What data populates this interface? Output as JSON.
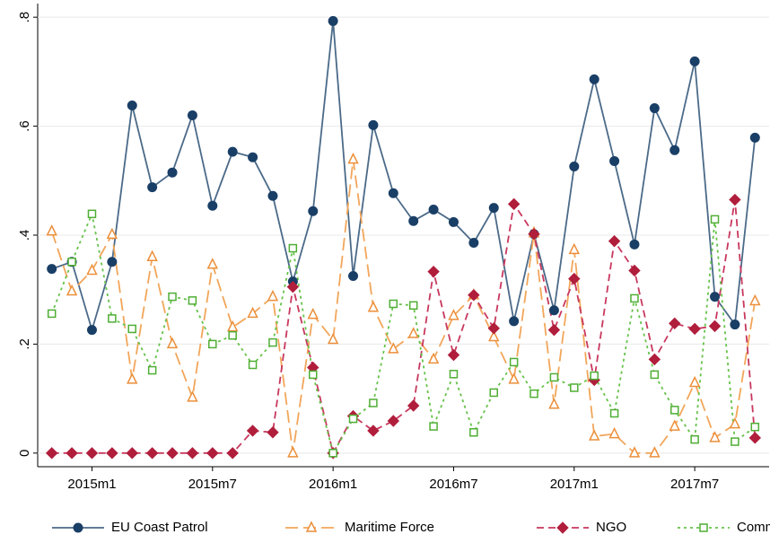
{
  "chart_data": {
    "type": "line",
    "categories": [
      null,
      null,
      "2015m1",
      null,
      null,
      null,
      null,
      null,
      "2015m7",
      null,
      null,
      null,
      null,
      null,
      "2016m1",
      null,
      null,
      null,
      null,
      null,
      "2016m7",
      null,
      null,
      null,
      null,
      null,
      "2017m1",
      null,
      null,
      null,
      null,
      null,
      "2017m7",
      null,
      null,
      null
    ],
    "ylim": [
      -0.025,
      0.825
    ],
    "yticks": [
      0,
      {
        "value": 0.2,
        "label": ".2"
      },
      {
        "value": 0.4,
        "label": ".4"
      },
      {
        "value": 0.6,
        "label": ".6"
      },
      {
        "value": 0.8,
        "label": ".8"
      }
    ],
    "grid": true,
    "legend": "bottom",
    "series": [
      {
        "name": "EU Coast Patrol",
        "color": "#4b6a88",
        "marker": "circle",
        "marker_color": "#1a3f66",
        "dash": "solid",
        "values": [
          0.338,
          0.351,
          0.226,
          0.351,
          0.638,
          0.488,
          0.515,
          0.62,
          0.454,
          0.553,
          0.543,
          0.472,
          0.315,
          0.444,
          0.793,
          0.325,
          0.602,
          0.477,
          0.426,
          0.447,
          0.424,
          0.386,
          0.45,
          0.242,
          0.402,
          0.262,
          0.526,
          0.686,
          0.536,
          0.383,
          0.633,
          0.556,
          0.719,
          0.287,
          0.236,
          0.579
        ]
      },
      {
        "name": "Maritime Force",
        "color": "#f2a65a",
        "marker": "triangle",
        "marker_color": "#ec8f3a",
        "dash": "long",
        "values": [
          0.407,
          0.297,
          0.335,
          0.401,
          0.135,
          0.36,
          0.2,
          0.102,
          0.346,
          0.231,
          0.256,
          0.287,
          0,
          0.254,
          0.208,
          0.539,
          0.267,
          0.191,
          0.219,
          0.172,
          0.252,
          0.29,
          0.213,
          0.135,
          0.404,
          0.089,
          0.373,
          0.031,
          0.035,
          0,
          0,
          0.049,
          0.129,
          0.028,
          0.053,
          0.279
        ]
      },
      {
        "name": "NGO",
        "color": "#c8385e",
        "marker": "diamond",
        "marker_color": "#b01e3c",
        "dash": "medium",
        "values": [
          0,
          0,
          0,
          0,
          0,
          0,
          0,
          0,
          0,
          0,
          0.041,
          0.038,
          0.305,
          0.157,
          0,
          0.068,
          0.041,
          0.059,
          0.087,
          0.333,
          0.18,
          0.29,
          0.229,
          0.457,
          0.402,
          0.226,
          0.32,
          0.134,
          0.389,
          0.335,
          0.172,
          0.238,
          0.228,
          0.233,
          0.465,
          0.028
        ]
      },
      {
        "name": "Commercial",
        "color": "#66c24a",
        "marker": "square",
        "marker_color": "#4fae34",
        "dash": "dot",
        "values": [
          0.256,
          0.351,
          0.439,
          0.247,
          0.228,
          0.152,
          0.287,
          0.28,
          0.2,
          0.216,
          0.162,
          0.203,
          0.376,
          0.144,
          0,
          0.063,
          0.092,
          0.274,
          0.271,
          0.049,
          0.145,
          0.038,
          0.111,
          0.167,
          0.109,
          0.139,
          0.12,
          0.142,
          0.073,
          0.284,
          0.144,
          0.079,
          0.025,
          0.429,
          0.021,
          0.048
        ]
      }
    ]
  }
}
